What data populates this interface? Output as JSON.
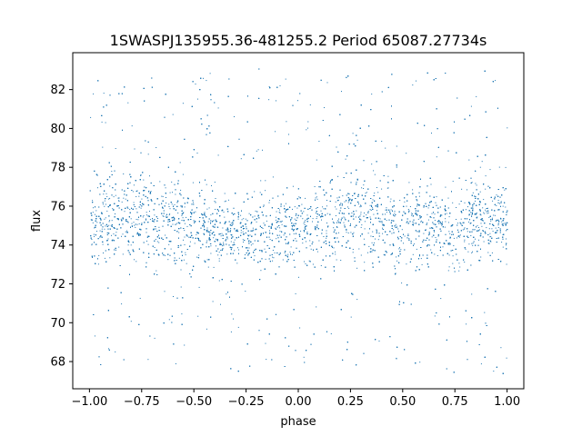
{
  "chart_data": {
    "type": "scatter",
    "title": "1SWASPJ135955.36-481255.2 Period 65087.27734s",
    "xlabel": "phase",
    "ylabel": "flux",
    "xlim": [
      -1.08,
      1.08
    ],
    "ylim": [
      66.6,
      83.9
    ],
    "x_ticks": [
      -1.0,
      -0.75,
      -0.5,
      -0.25,
      0.0,
      0.25,
      0.5,
      0.75,
      1.0
    ],
    "x_tick_labels": [
      "−1.00",
      "−0.75",
      "−0.50",
      "−0.25",
      "0.00",
      "0.25",
      "0.50",
      "0.75",
      "1.00"
    ],
    "y_ticks": [
      68,
      70,
      72,
      74,
      76,
      78,
      80,
      82
    ],
    "y_tick_labels": [
      "68",
      "70",
      "72",
      "74",
      "76",
      "78",
      "80",
      "82"
    ],
    "grid": false,
    "marker_color": "#1f77b4",
    "x_range": [
      -1.0,
      1.0
    ],
    "flux_range": [
      67.4,
      83.1
    ],
    "envelope": {
      "phase": [
        -1.0,
        -0.75,
        -0.5,
        -0.25,
        0.0,
        0.25,
        0.5,
        0.75,
        1.0
      ],
      "median": [
        75.3,
        75.6,
        75.0,
        74.6,
        74.9,
        75.6,
        75.1,
        75.0,
        75.3
      ],
      "half_width_dense": [
        1.9,
        2.1,
        1.8,
        1.6,
        1.7,
        2.1,
        1.8,
        1.8,
        1.9
      ]
    }
  }
}
